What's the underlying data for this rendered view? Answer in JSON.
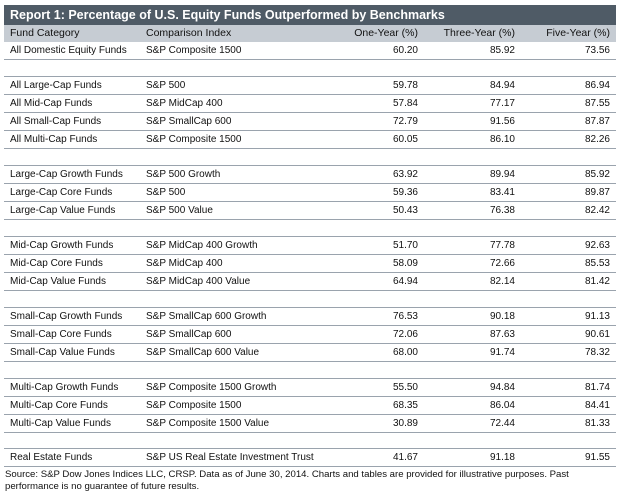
{
  "title": "Report 1: Percentage of U.S. Equity Funds Outperformed by Benchmarks",
  "colors": {
    "title_bg": "#4f5b66",
    "header_bg": "#c6ccd3",
    "row_border": "#9aa3ad"
  },
  "headers": [
    "Fund Category",
    "Comparison Index",
    "One-Year (%)",
    "Three-Year (%)",
    "Five-Year (%)"
  ],
  "groups": [
    {
      "rows": [
        [
          "All Domestic Equity Funds",
          "S&P Composite 1500",
          "60.20",
          "85.92",
          "73.56"
        ]
      ]
    },
    {
      "rows": [
        [
          "All Large-Cap Funds",
          "S&P 500",
          "59.78",
          "84.94",
          "86.94"
        ],
        [
          "All Mid-Cap Funds",
          "S&P MidCap 400",
          "57.84",
          "77.17",
          "87.55"
        ],
        [
          "All Small-Cap Funds",
          "S&P SmallCap 600",
          "72.79",
          "91.56",
          "87.87"
        ],
        [
          "All Multi-Cap Funds",
          "S&P Composite 1500",
          "60.05",
          "86.10",
          "82.26"
        ]
      ]
    },
    {
      "rows": [
        [
          "Large-Cap Growth Funds",
          "S&P 500 Growth",
          "63.92",
          "89.94",
          "85.92"
        ],
        [
          "Large-Cap Core Funds",
          "S&P 500",
          "59.36",
          "83.41",
          "89.87"
        ],
        [
          "Large-Cap Value Funds",
          "S&P 500 Value",
          "50.43",
          "76.38",
          "82.42"
        ]
      ]
    },
    {
      "rows": [
        [
          "Mid-Cap Growth Funds",
          "S&P MidCap 400 Growth",
          "51.70",
          "77.78",
          "92.63"
        ],
        [
          "Mid-Cap Core Funds",
          "S&P MidCap 400",
          "58.09",
          "72.66",
          "85.53"
        ],
        [
          "Mid-Cap Value Funds",
          "S&P MidCap 400 Value",
          "64.94",
          "82.14",
          "81.42"
        ]
      ]
    },
    {
      "rows": [
        [
          "Small-Cap Growth Funds",
          "S&P SmallCap 600 Growth",
          "76.53",
          "90.18",
          "91.13"
        ],
        [
          "Small-Cap Core Funds",
          "S&P SmallCap 600",
          "72.06",
          "87.63",
          "90.61"
        ],
        [
          "Small-Cap Value Funds",
          "S&P SmallCap 600 Value",
          "68.00",
          "91.74",
          "78.32"
        ]
      ]
    },
    {
      "rows": [
        [
          "Multi-Cap Growth Funds",
          "S&P Composite 1500 Growth",
          "55.50",
          "94.84",
          "81.74"
        ],
        [
          "Multi-Cap Core Funds",
          "S&P Composite 1500",
          "68.35",
          "86.04",
          "84.41"
        ],
        [
          "Multi-Cap Value Funds",
          "S&P Composite 1500 Value",
          "30.89",
          "72.44",
          "81.33"
        ]
      ]
    },
    {
      "rows": [
        [
          "Real Estate Funds",
          "S&P US Real Estate Investment Trust",
          "41.67",
          "91.18",
          "91.55"
        ]
      ]
    }
  ],
  "source": "Source: S&P Dow Jones Indices LLC, CRSP.  Data as of June 30, 2014.  Charts and tables are provided for illustrative purposes.  Past performance is no guarantee of future results."
}
